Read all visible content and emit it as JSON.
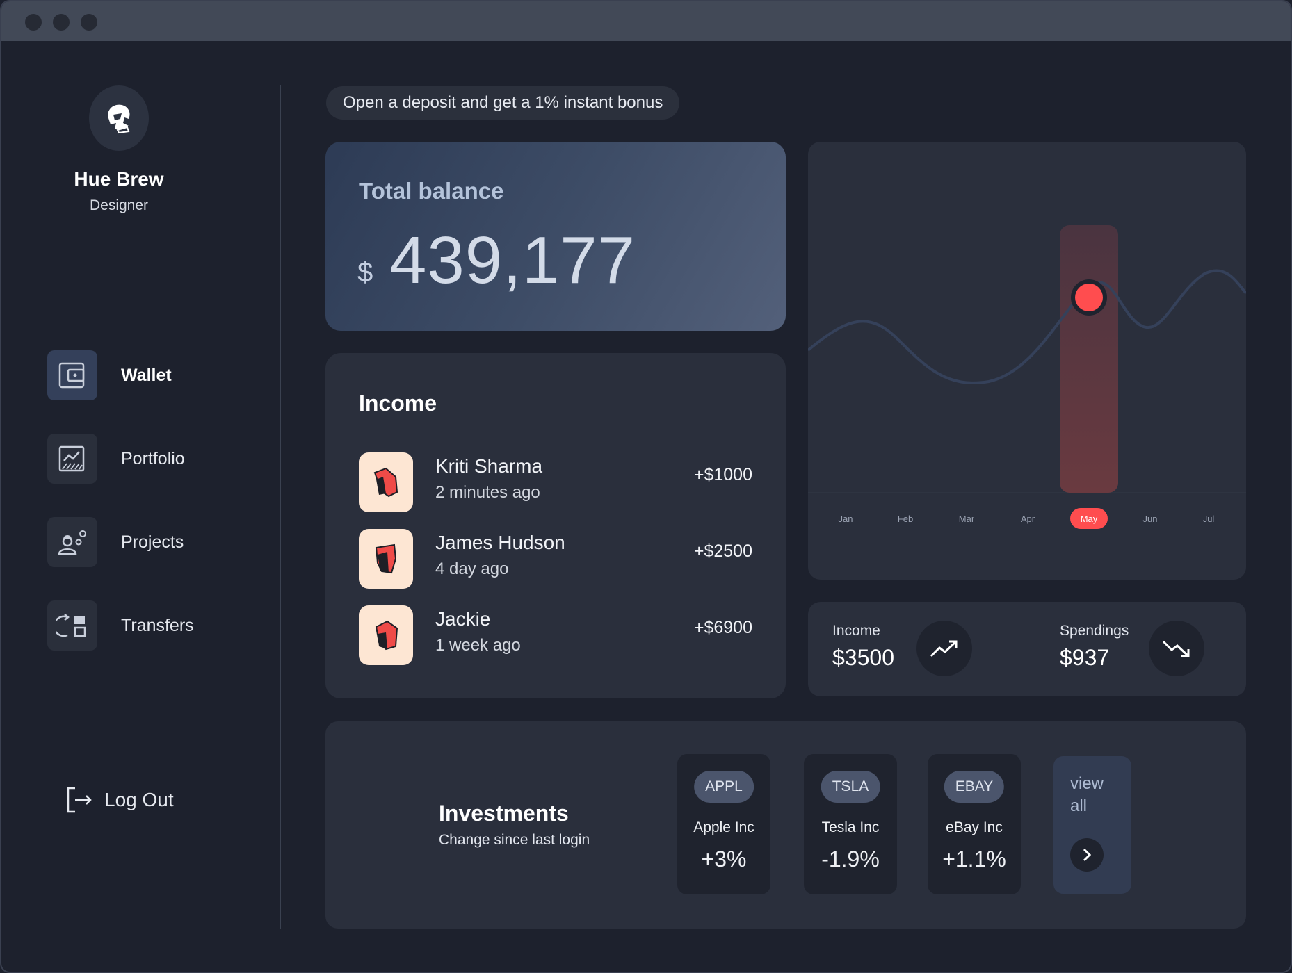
{
  "window": {
    "controls": [
      "close",
      "minimize",
      "maximize"
    ]
  },
  "profile": {
    "name": "Hue Brew",
    "role": "Designer",
    "avatar_icon": "helmet-avatar-icon"
  },
  "nav": {
    "items": [
      {
        "label": "Wallet",
        "icon": "wallet-icon",
        "active": true
      },
      {
        "label": "Portfolio",
        "icon": "chart-icon",
        "active": false
      },
      {
        "label": "Projects",
        "icon": "user-gear-icon",
        "active": false
      },
      {
        "label": "Transfers",
        "icon": "transfer-icon",
        "active": false
      }
    ],
    "logout": "Log Out"
  },
  "promo": "Open a deposit and get a 1% instant bonus",
  "balance": {
    "title": "Total balance",
    "currency": "$",
    "amount": "439,177"
  },
  "income": {
    "title": "Income",
    "rows": [
      {
        "name": "Kriti Sharma",
        "time": "2 minutes ago",
        "amount": "+$1000"
      },
      {
        "name": "James Hudson",
        "time": "4 day ago",
        "amount": "+$2500"
      },
      {
        "name": "Jackie",
        "time": "1 week ago",
        "amount": "+$6900"
      }
    ]
  },
  "chart_data": {
    "type": "line",
    "categories": [
      "Jan",
      "Feb",
      "Mar",
      "Apr",
      "May",
      "Jun",
      "Jul"
    ],
    "selected": "May",
    "colors": {
      "line": "#35415a",
      "highlight": "#ff4d4f"
    }
  },
  "stats": {
    "income": {
      "label": "Income",
      "value": "$3500",
      "icon": "trend-up-icon"
    },
    "spendings": {
      "label": "Spendings",
      "value": "$937",
      "icon": "trend-down-icon"
    }
  },
  "investments": {
    "title": "Investments",
    "subtitle": "Change since last login",
    "stocks": [
      {
        "ticker": "APPL",
        "name": "Apple Inc",
        "change": "+3%"
      },
      {
        "ticker": "TSLA",
        "name": "Tesla Inc",
        "change": "-1.9%"
      },
      {
        "ticker": "EBAY",
        "name": "eBay Inc",
        "change": "+1.1%"
      }
    ],
    "view_all": "view all"
  }
}
